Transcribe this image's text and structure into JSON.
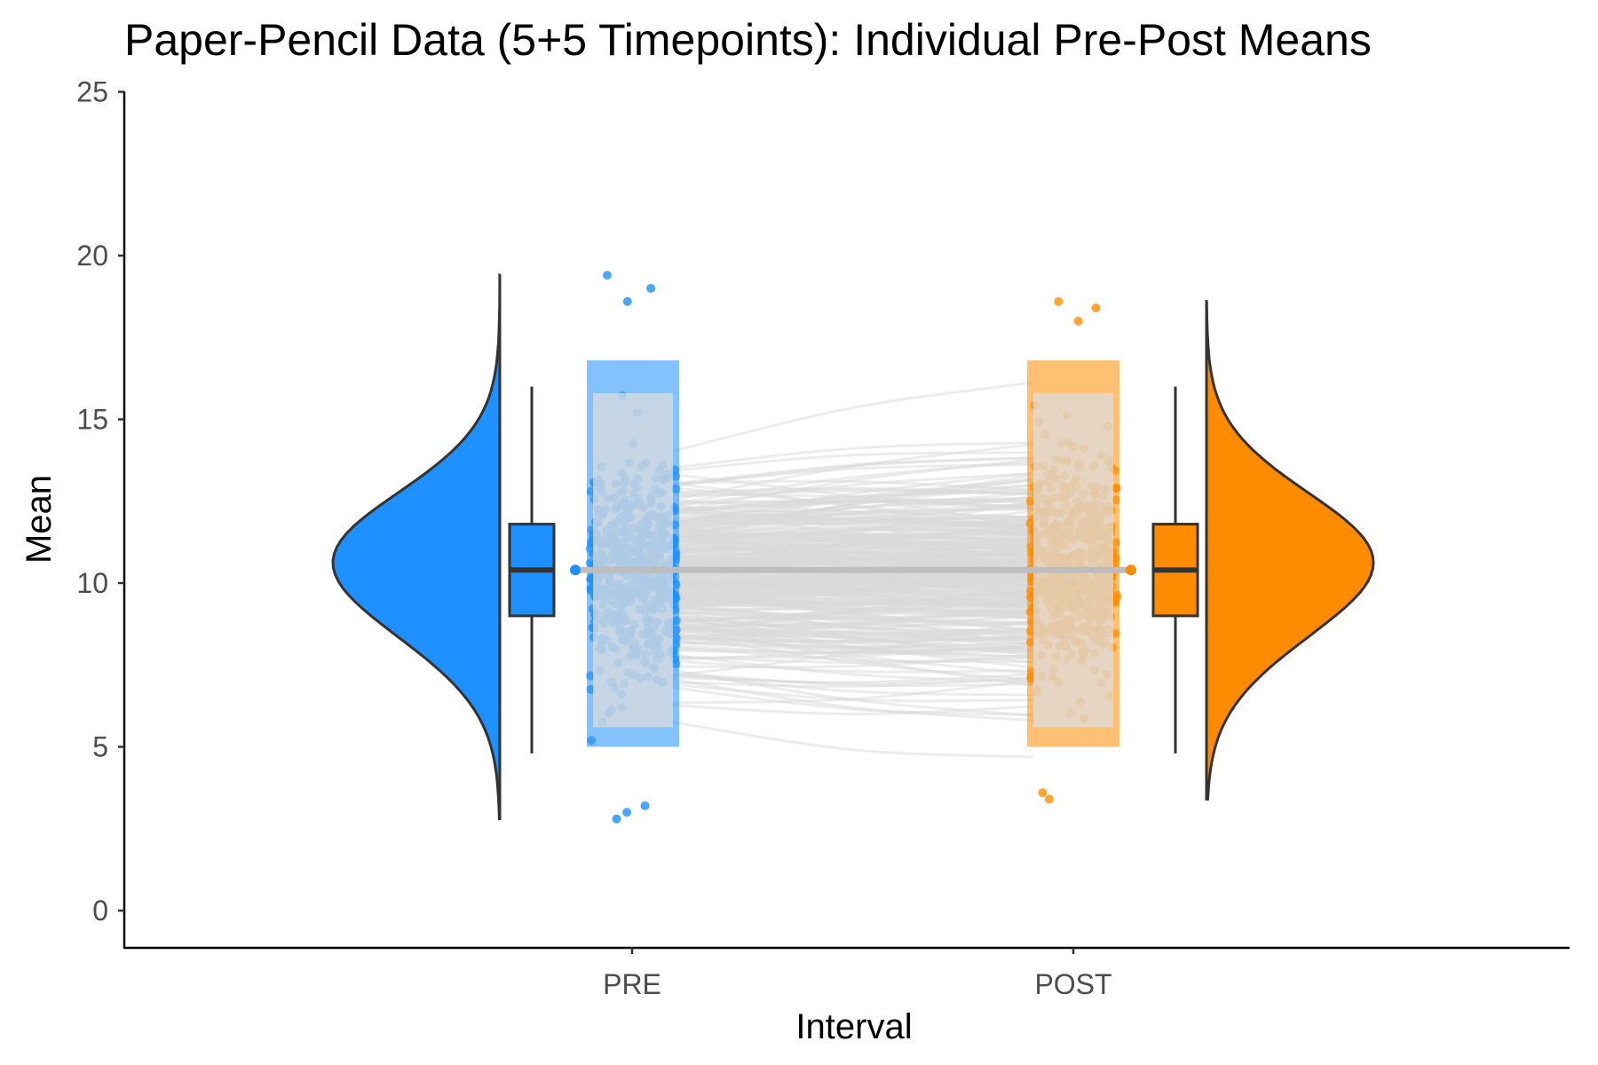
{
  "chart_data": {
    "type": "raincloud",
    "title": "Paper-Pencil Data (5+5 Timepoints): Individual Pre-Post Means",
    "xlabel": "Interval",
    "ylabel": "Mean",
    "categories": [
      "PRE",
      "POST"
    ],
    "ylim": [
      -1.2,
      25.2
    ],
    "yticks": [
      0,
      5,
      10,
      15,
      20,
      25
    ],
    "ytick_labels": [
      "0",
      "5",
      "10",
      "15",
      "20",
      "25"
    ],
    "grid": false,
    "legend": "none",
    "colors": {
      "PRE": "#1E90FF",
      "POST": "#FF8C00",
      "lines": "#d9d9d9",
      "outline": "#333333",
      "mean_line": "#bdbdbd"
    },
    "series": [
      {
        "name": "PRE",
        "mean": 10.4,
        "boxplot": {
          "whisker_low": 4.8,
          "q1": 9.0,
          "median": 10.4,
          "q3": 11.8,
          "whisker_high": 16.0
        },
        "density": {
          "min": 2.8,
          "max": 19.4,
          "mode": 10.3
        },
        "points": {
          "bulk_low": 5.0,
          "bulk_high": 16.8,
          "cap_low": 4.0,
          "cap_high": 17.8,
          "extremes": [
            2.8,
            3.0,
            3.2,
            18.6,
            19.0,
            19.4
          ]
        }
      },
      {
        "name": "POST",
        "mean": 10.4,
        "boxplot": {
          "whisker_low": 4.8,
          "q1": 9.0,
          "median": 10.4,
          "q3": 11.8,
          "whisker_high": 16.0
        },
        "density": {
          "min": 3.4,
          "max": 18.6,
          "mode": 10.3
        },
        "points": {
          "bulk_low": 5.0,
          "bulk_high": 16.8,
          "cap_low": 3.8,
          "cap_high": 17.8,
          "extremes": [
            3.4,
            3.6,
            18.0,
            18.4,
            18.6
          ]
        }
      }
    ]
  }
}
